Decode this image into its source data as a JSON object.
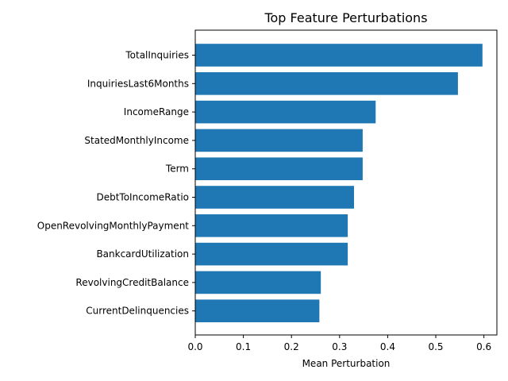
{
  "chart_data": {
    "type": "bar",
    "orientation": "horizontal",
    "title": "Top Feature Perturbations",
    "xlabel": "Mean Perturbation",
    "ylabel": "",
    "categories": [
      "TotalInquiries",
      "InquiriesLast6Months",
      "IncomeRange",
      "StatedMonthlyIncome",
      "Term",
      "DebtToIncomeRatio",
      "OpenRevolvingMonthlyPayment",
      "BankcardUtilization",
      "RevolvingCreditBalance",
      "CurrentDelinquencies"
    ],
    "values": [
      0.597,
      0.546,
      0.375,
      0.348,
      0.348,
      0.33,
      0.317,
      0.317,
      0.261,
      0.258
    ],
    "xlim": [
      0,
      0.627
    ],
    "xticks": [
      0.0,
      0.1,
      0.2,
      0.3,
      0.4,
      0.5,
      0.6
    ],
    "xtick_labels": [
      "0.0",
      "0.1",
      "0.2",
      "0.3",
      "0.4",
      "0.5",
      "0.6"
    ],
    "bar_color": "#1f77b4",
    "grid": false,
    "legend": "none"
  }
}
